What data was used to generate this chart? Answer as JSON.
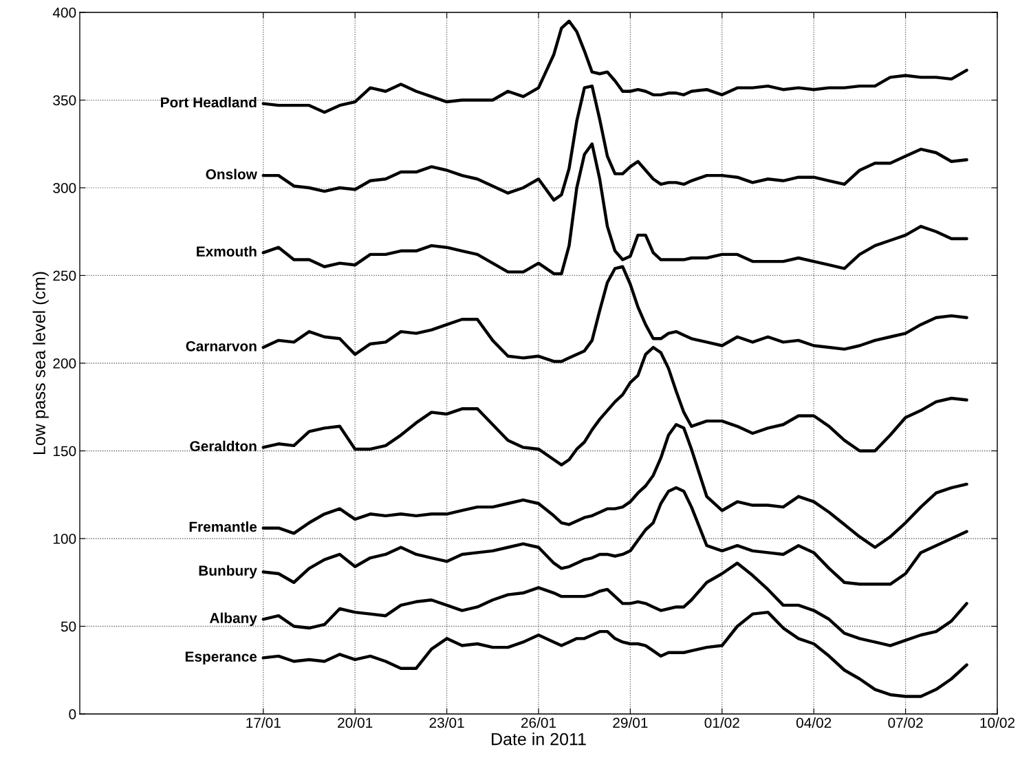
{
  "chart_data": {
    "type": "line",
    "xlabel": "Date in 2011",
    "ylabel": "Low pass sea level (cm)",
    "x": [
      "2011-01-17T00:00",
      "2011-01-17T12:00",
      "2011-01-18T00:00",
      "2011-01-18T12:00",
      "2011-01-19T00:00",
      "2011-01-19T12:00",
      "2011-01-20T00:00",
      "2011-01-20T12:00",
      "2011-01-21T00:00",
      "2011-01-21T12:00",
      "2011-01-22T00:00",
      "2011-01-22T12:00",
      "2011-01-23T00:00",
      "2011-01-23T12:00",
      "2011-01-24T00:00",
      "2011-01-24T12:00",
      "2011-01-25T00:00",
      "2011-01-25T12:00",
      "2011-01-26T00:00",
      "2011-01-26T12:00",
      "2011-01-26T18:00",
      "2011-01-27T00:00",
      "2011-01-27T06:00",
      "2011-01-27T12:00",
      "2011-01-27T18:00",
      "2011-01-28T00:00",
      "2011-01-28T06:00",
      "2011-01-28T12:00",
      "2011-01-28T18:00",
      "2011-01-29T00:00",
      "2011-01-29T06:00",
      "2011-01-29T12:00",
      "2011-01-29T18:00",
      "2011-01-30T00:00",
      "2011-01-30T06:00",
      "2011-01-30T12:00",
      "2011-01-30T18:00",
      "2011-01-31T00:00",
      "2011-01-31T12:00",
      "2011-02-01T00:00",
      "2011-02-01T12:00",
      "2011-02-02T00:00",
      "2011-02-02T12:00",
      "2011-02-03T00:00",
      "2011-02-03T12:00",
      "2011-02-04T00:00",
      "2011-02-04T12:00",
      "2011-02-05T00:00",
      "2011-02-05T12:00",
      "2011-02-06T00:00",
      "2011-02-06T12:00",
      "2011-02-07T00:00",
      "2011-02-07T12:00",
      "2011-02-08T00:00",
      "2011-02-08T12:00",
      "2011-02-09T00:00"
    ],
    "series": [
      {
        "name": "Port Headland",
        "color": "#000000",
        "values": [
          348,
          347,
          347,
          347,
          343,
          347,
          349,
          357,
          355,
          359,
          355,
          352,
          349,
          350,
          350,
          350,
          355,
          352,
          357,
          376,
          391,
          395,
          389,
          378,
          366,
          365,
          366,
          361,
          355,
          355,
          356,
          355,
          353,
          353,
          354,
          354,
          353,
          355,
          356,
          353,
          357,
          357,
          358,
          356,
          357,
          356,
          357,
          357,
          358,
          358,
          363,
          364,
          363,
          363,
          362,
          367
        ]
      },
      {
        "name": "Onslow",
        "color": "#000000",
        "values": [
          307,
          307,
          301,
          300,
          298,
          300,
          299,
          304,
          305,
          309,
          309,
          312,
          310,
          307,
          305,
          301,
          297,
          300,
          305,
          293,
          296,
          311,
          338,
          357,
          358,
          339,
          318,
          308,
          308,
          312,
          315,
          310,
          305,
          302,
          303,
          303,
          302,
          304,
          307,
          307,
          306,
          303,
          305,
          304,
          306,
          306,
          304,
          302,
          310,
          314,
          314,
          318,
          322,
          320,
          315,
          316
        ]
      },
      {
        "name": "Exmouth",
        "color": "#000000",
        "values": [
          263,
          266,
          259,
          259,
          255,
          257,
          256,
          262,
          262,
          264,
          264,
          267,
          266,
          264,
          262,
          257,
          252,
          252,
          257,
          251,
          251,
          267,
          300,
          319,
          325,
          305,
          278,
          264,
          259,
          261,
          273,
          273,
          263,
          259,
          259,
          259,
          259,
          260,
          260,
          262,
          262,
          258,
          258,
          258,
          260,
          258,
          256,
          254,
          262,
          267,
          270,
          273,
          278,
          275,
          271,
          271
        ]
      },
      {
        "name": "Carnarvon",
        "color": "#000000",
        "values": [
          209,
          213,
          212,
          218,
          215,
          214,
          205,
          211,
          212,
          218,
          217,
          219,
          222,
          225,
          225,
          213,
          204,
          203,
          204,
          201,
          201,
          203,
          205,
          207,
          213,
          230,
          246,
          254,
          255,
          245,
          232,
          222,
          214,
          214,
          217,
          218,
          216,
          214,
          212,
          210,
          215,
          212,
          215,
          212,
          213,
          210,
          209,
          208,
          210,
          213,
          215,
          217,
          222,
          226,
          227,
          226
        ]
      },
      {
        "name": "Geraldton",
        "color": "#000000",
        "values": [
          152,
          154,
          153,
          161,
          163,
          164,
          151,
          151,
          153,
          159,
          166,
          172,
          171,
          174,
          174,
          165,
          156,
          152,
          151,
          145,
          142,
          145,
          151,
          155,
          162,
          168,
          173,
          178,
          182,
          189,
          193,
          205,
          209,
          206,
          197,
          184,
          172,
          164,
          167,
          167,
          164,
          160,
          163,
          165,
          170,
          170,
          164,
          156,
          150,
          150,
          159,
          169,
          173,
          178,
          180,
          179
        ]
      },
      {
        "name": "Fremantle",
        "color": "#000000",
        "values": [
          106,
          106,
          103,
          109,
          114,
          117,
          111,
          114,
          113,
          114,
          113,
          114,
          114,
          116,
          118,
          118,
          120,
          122,
          120,
          113,
          109,
          108,
          110,
          112,
          113,
          115,
          117,
          117,
          118,
          121,
          126,
          130,
          136,
          146,
          159,
          165,
          163,
          151,
          124,
          116,
          121,
          119,
          119,
          118,
          124,
          121,
          115,
          108,
          101,
          95,
          101,
          109,
          118,
          126,
          129,
          131
        ]
      },
      {
        "name": "Bunbury",
        "color": "#000000",
        "values": [
          81,
          80,
          75,
          83,
          88,
          91,
          84,
          89,
          91,
          95,
          91,
          89,
          87,
          91,
          92,
          93,
          95,
          97,
          95,
          86,
          83,
          84,
          86,
          88,
          89,
          91,
          91,
          90,
          91,
          93,
          99,
          105,
          109,
          120,
          127,
          129,
          127,
          118,
          96,
          93,
          96,
          93,
          92,
          91,
          96,
          92,
          83,
          75,
          74,
          74,
          74,
          80,
          92,
          96,
          100,
          104
        ]
      },
      {
        "name": "Albany",
        "color": "#000000",
        "values": [
          54,
          56,
          50,
          49,
          51,
          60,
          58,
          57,
          56,
          62,
          64,
          65,
          62,
          59,
          61,
          65,
          68,
          69,
          72,
          69,
          67,
          67,
          67,
          67,
          68,
          70,
          71,
          67,
          63,
          63,
          64,
          63,
          61,
          59,
          60,
          61,
          61,
          65,
          75,
          80,
          86,
          79,
          71,
          62,
          62,
          59,
          54,
          46,
          43,
          41,
          39,
          42,
          45,
          47,
          53,
          63
        ]
      },
      {
        "name": "Esperance",
        "color": "#000000",
        "values": [
          32,
          33,
          30,
          31,
          30,
          34,
          31,
          33,
          30,
          26,
          26,
          37,
          43,
          39,
          40,
          38,
          38,
          41,
          45,
          41,
          39,
          41,
          43,
          43,
          45,
          47,
          47,
          43,
          41,
          40,
          40,
          39,
          36,
          33,
          35,
          35,
          35,
          36,
          38,
          39,
          50,
          57,
          58,
          49,
          43,
          40,
          33,
          25,
          20,
          14,
          11,
          10,
          10,
          14,
          20,
          28
        ]
      }
    ],
    "xlim": [
      "2011-01-11",
      "2011-02-10"
    ],
    "xticks": [
      {
        "value": "2011-01-17",
        "label": "17/01"
      },
      {
        "value": "2011-01-20",
        "label": "20/01"
      },
      {
        "value": "2011-01-23",
        "label": "23/01"
      },
      {
        "value": "2011-01-26",
        "label": "26/01"
      },
      {
        "value": "2011-01-29",
        "label": "29/01"
      },
      {
        "value": "2011-02-01",
        "label": "01/02"
      },
      {
        "value": "2011-02-04",
        "label": "04/02"
      },
      {
        "value": "2011-02-07",
        "label": "07/02"
      },
      {
        "value": "2011-02-10",
        "label": "10/02"
      }
    ],
    "ylim": [
      0,
      400
    ],
    "yticks": [
      0,
      50,
      100,
      150,
      200,
      250,
      300,
      350,
      400
    ],
    "grid": true,
    "legend": false,
    "line_style": "solid"
  }
}
